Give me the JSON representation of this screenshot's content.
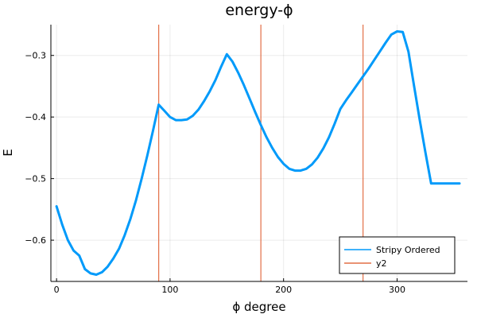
{
  "chart_data": {
    "type": "line",
    "title": "energy-ϕ",
    "xlabel": "ϕ degree",
    "ylabel": "E",
    "xlim": [
      -5,
      362
    ],
    "ylim": [
      -0.667,
      -0.25
    ],
    "xticks": [
      0,
      100,
      200,
      300
    ],
    "yticks": [
      -0.6,
      -0.5,
      -0.4,
      -0.3
    ],
    "grid": true,
    "legend_position": "bottom-right",
    "series": [
      {
        "name": "Stripy Ordered",
        "color": "#009AFA",
        "x": [
          0,
          5,
          10,
          15,
          20,
          25,
          30,
          35,
          40,
          45,
          50,
          55,
          60,
          65,
          70,
          75,
          80,
          85,
          90,
          95,
          100,
          105,
          110,
          115,
          120,
          125,
          130,
          135,
          140,
          145,
          150,
          155,
          160,
          165,
          170,
          175,
          180,
          185,
          190,
          195,
          200,
          205,
          210,
          215,
          220,
          225,
          230,
          235,
          240,
          245,
          250,
          255,
          260,
          265,
          270,
          275,
          280,
          285,
          290,
          295,
          300,
          305,
          310,
          315,
          320,
          325,
          330,
          335,
          340,
          345,
          350,
          355
        ],
        "y": [
          -0.545,
          -0.575,
          -0.6,
          -0.617,
          -0.625,
          -0.647,
          -0.654,
          -0.656,
          -0.652,
          -0.643,
          -0.63,
          -0.614,
          -0.592,
          -0.566,
          -0.535,
          -0.5,
          -0.462,
          -0.422,
          -0.38,
          -0.39,
          -0.4,
          -0.405,
          -0.405,
          -0.404,
          -0.398,
          -0.388,
          -0.374,
          -0.358,
          -0.34,
          -0.318,
          -0.298,
          -0.31,
          -0.328,
          -0.348,
          -0.37,
          -0.392,
          -0.413,
          -0.433,
          -0.45,
          -0.465,
          -0.476,
          -0.484,
          -0.487,
          -0.487,
          -0.484,
          -0.477,
          -0.466,
          -0.451,
          -0.433,
          -0.411,
          -0.387,
          -0.373,
          -0.36,
          -0.347,
          -0.334,
          -0.321,
          -0.307,
          -0.293,
          -0.279,
          -0.266,
          -0.261,
          -0.262,
          -0.294,
          -0.35,
          -0.405,
          -0.458,
          -0.508,
          -0.508,
          -0.508,
          -0.508,
          -0.508,
          -0.508
        ]
      },
      {
        "name": "y2",
        "color": "#E26F46",
        "vlines": [
          90,
          180,
          270
        ]
      }
    ]
  }
}
